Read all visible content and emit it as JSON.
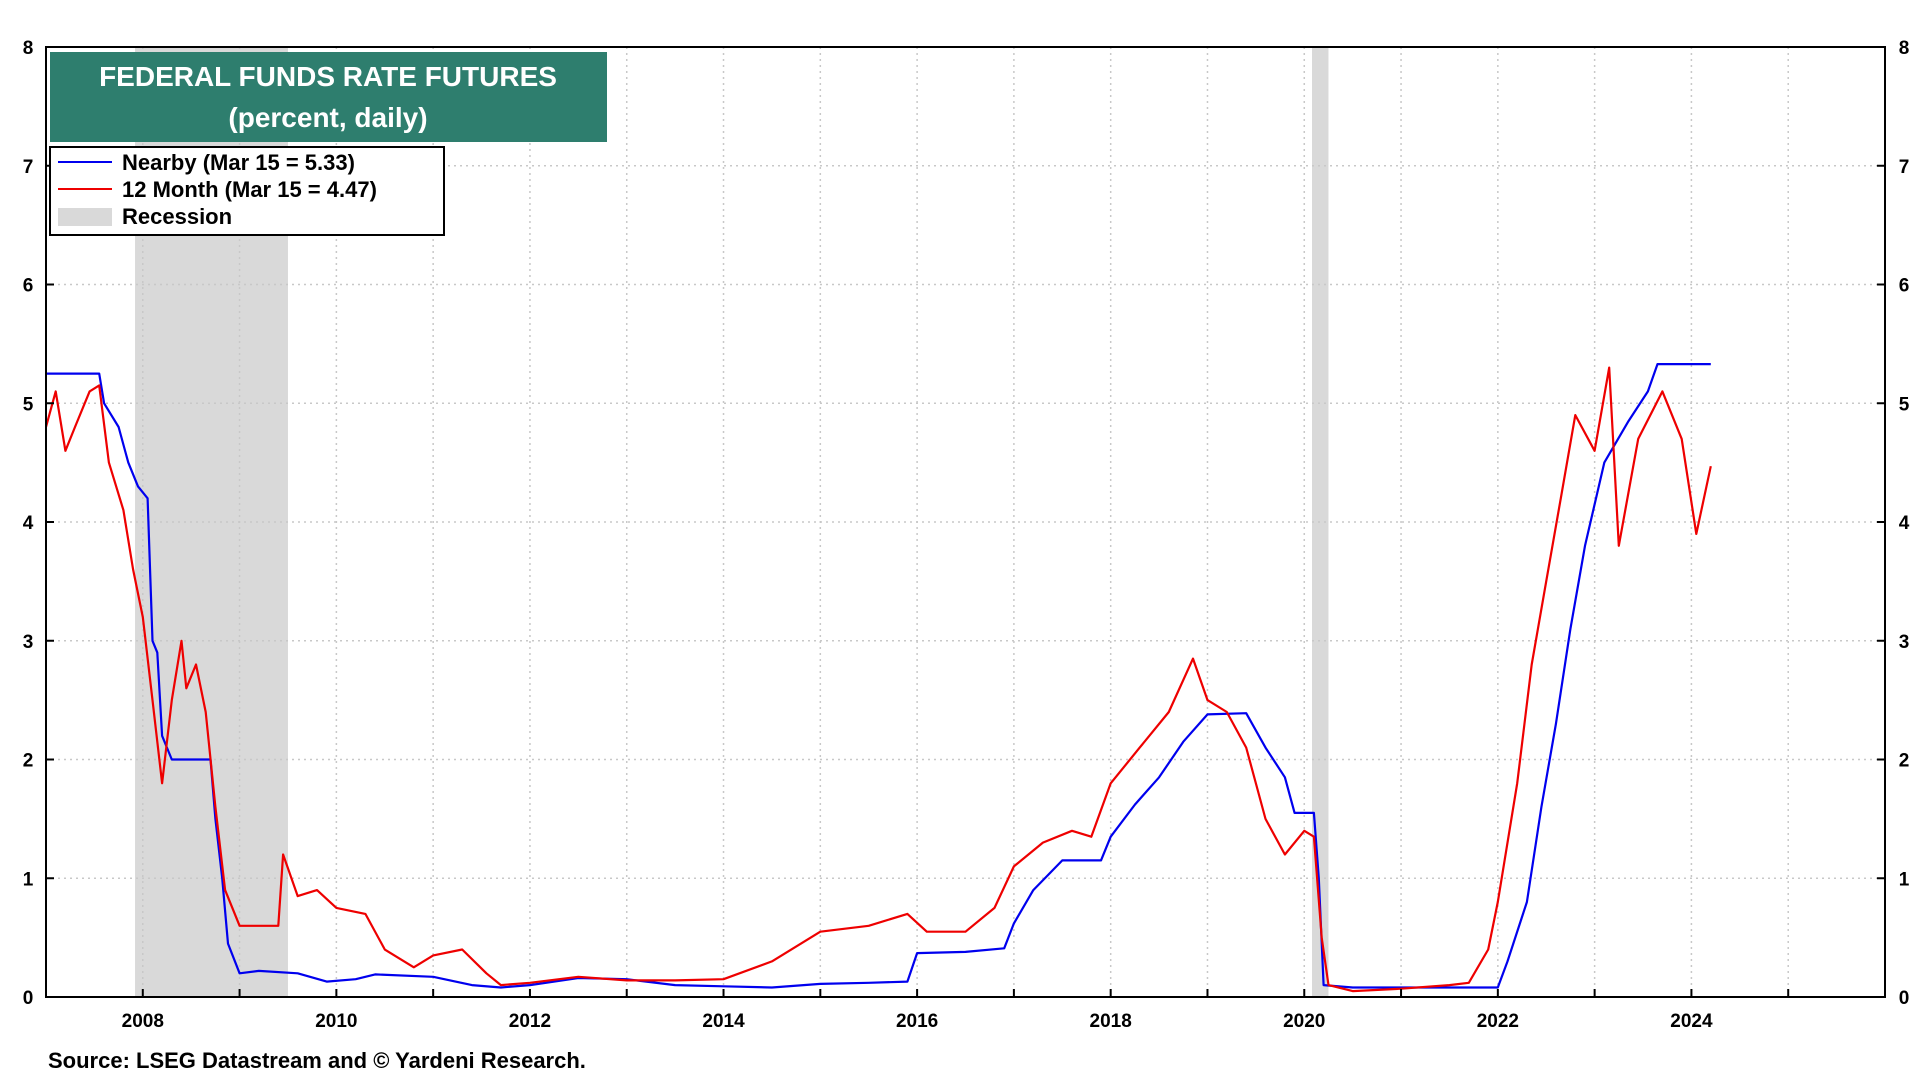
{
  "chart_data": {
    "type": "line",
    "title": "FEDERAL FUNDS RATE FUTURES",
    "subtitle": "(percent, daily)",
    "source": "Source: LSEG Datastream and © Yardeni Research.",
    "xlim": [
      2007.0,
      2026.0
    ],
    "ylim": [
      0,
      8
    ],
    "x_ticks": [
      2008,
      2010,
      2012,
      2014,
      2016,
      2018,
      2020,
      2022,
      2024
    ],
    "y_ticks": [
      0,
      1,
      2,
      3,
      4,
      5,
      6,
      7,
      8
    ],
    "grid": true,
    "legend_position": "top-left",
    "recessions": [
      {
        "start": 2007.92,
        "end": 2009.5
      },
      {
        "start": 2020.08,
        "end": 2020.25
      }
    ],
    "recession_label": "Recession",
    "series": [
      {
        "name": "Nearby (Mar 15 = 5.33)",
        "color": "#0000ee",
        "points": [
          [
            2007.0,
            5.25
          ],
          [
            2007.55,
            5.25
          ],
          [
            2007.6,
            5.0
          ],
          [
            2007.75,
            4.8
          ],
          [
            2007.85,
            4.5
          ],
          [
            2007.95,
            4.3
          ],
          [
            2008.05,
            4.2
          ],
          [
            2008.1,
            3.0
          ],
          [
            2008.15,
            2.9
          ],
          [
            2008.2,
            2.2
          ],
          [
            2008.3,
            2.0
          ],
          [
            2008.7,
            2.0
          ],
          [
            2008.75,
            1.5
          ],
          [
            2008.82,
            1.0
          ],
          [
            2008.88,
            0.45
          ],
          [
            2009.0,
            0.2
          ],
          [
            2009.2,
            0.22
          ],
          [
            2009.6,
            0.2
          ],
          [
            2009.9,
            0.13
          ],
          [
            2010.2,
            0.15
          ],
          [
            2010.4,
            0.19
          ],
          [
            2011.0,
            0.17
          ],
          [
            2011.4,
            0.1
          ],
          [
            2011.7,
            0.08
          ],
          [
            2012.0,
            0.1
          ],
          [
            2012.5,
            0.16
          ],
          [
            2013.0,
            0.15
          ],
          [
            2013.5,
            0.1
          ],
          [
            2014.0,
            0.09
          ],
          [
            2014.5,
            0.08
          ],
          [
            2015.0,
            0.11
          ],
          [
            2015.5,
            0.12
          ],
          [
            2015.9,
            0.13
          ],
          [
            2016.0,
            0.37
          ],
          [
            2016.5,
            0.38
          ],
          [
            2016.9,
            0.41
          ],
          [
            2017.0,
            0.62
          ],
          [
            2017.2,
            0.9
          ],
          [
            2017.5,
            1.15
          ],
          [
            2017.9,
            1.15
          ],
          [
            2018.0,
            1.35
          ],
          [
            2018.25,
            1.62
          ],
          [
            2018.5,
            1.85
          ],
          [
            2018.75,
            2.15
          ],
          [
            2019.0,
            2.38
          ],
          [
            2019.4,
            2.39
          ],
          [
            2019.6,
            2.1
          ],
          [
            2019.8,
            1.85
          ],
          [
            2019.9,
            1.55
          ],
          [
            2020.1,
            1.55
          ],
          [
            2020.15,
            1.0
          ],
          [
            2020.2,
            0.1
          ],
          [
            2020.5,
            0.08
          ],
          [
            2021.0,
            0.08
          ],
          [
            2021.5,
            0.08
          ],
          [
            2022.0,
            0.08
          ],
          [
            2022.1,
            0.3
          ],
          [
            2022.3,
            0.8
          ],
          [
            2022.45,
            1.6
          ],
          [
            2022.6,
            2.3
          ],
          [
            2022.75,
            3.1
          ],
          [
            2022.9,
            3.8
          ],
          [
            2023.1,
            4.5
          ],
          [
            2023.35,
            4.85
          ],
          [
            2023.55,
            5.1
          ],
          [
            2023.65,
            5.33
          ],
          [
            2024.2,
            5.33
          ]
        ]
      },
      {
        "name": "12 Month (Mar 15 = 4.47)",
        "color": "#ee0000",
        "points": [
          [
            2007.0,
            4.8
          ],
          [
            2007.1,
            5.1
          ],
          [
            2007.2,
            4.6
          ],
          [
            2007.3,
            4.8
          ],
          [
            2007.45,
            5.1
          ],
          [
            2007.55,
            5.15
          ],
          [
            2007.65,
            4.5
          ],
          [
            2007.8,
            4.1
          ],
          [
            2007.9,
            3.6
          ],
          [
            2008.0,
            3.2
          ],
          [
            2008.1,
            2.5
          ],
          [
            2008.2,
            1.8
          ],
          [
            2008.3,
            2.5
          ],
          [
            2008.4,
            3.0
          ],
          [
            2008.45,
            2.6
          ],
          [
            2008.55,
            2.8
          ],
          [
            2008.65,
            2.4
          ],
          [
            2008.75,
            1.6
          ],
          [
            2008.85,
            0.9
          ],
          [
            2009.0,
            0.6
          ],
          [
            2009.2,
            0.6
          ],
          [
            2009.4,
            0.6
          ],
          [
            2009.45,
            1.2
          ],
          [
            2009.6,
            0.85
          ],
          [
            2009.8,
            0.9
          ],
          [
            2010.0,
            0.75
          ],
          [
            2010.3,
            0.7
          ],
          [
            2010.5,
            0.4
          ],
          [
            2010.8,
            0.25
          ],
          [
            2011.0,
            0.35
          ],
          [
            2011.3,
            0.4
          ],
          [
            2011.55,
            0.2
          ],
          [
            2011.7,
            0.1
          ],
          [
            2012.0,
            0.12
          ],
          [
            2012.5,
            0.17
          ],
          [
            2013.0,
            0.14
          ],
          [
            2013.5,
            0.14
          ],
          [
            2014.0,
            0.15
          ],
          [
            2014.5,
            0.3
          ],
          [
            2015.0,
            0.55
          ],
          [
            2015.5,
            0.6
          ],
          [
            2015.9,
            0.7
          ],
          [
            2016.1,
            0.55
          ],
          [
            2016.5,
            0.55
          ],
          [
            2016.8,
            0.75
          ],
          [
            2017.0,
            1.1
          ],
          [
            2017.3,
            1.3
          ],
          [
            2017.6,
            1.4
          ],
          [
            2017.8,
            1.35
          ],
          [
            2018.0,
            1.8
          ],
          [
            2018.3,
            2.1
          ],
          [
            2018.6,
            2.4
          ],
          [
            2018.85,
            2.85
          ],
          [
            2019.0,
            2.5
          ],
          [
            2019.2,
            2.4
          ],
          [
            2019.4,
            2.1
          ],
          [
            2019.6,
            1.5
          ],
          [
            2019.8,
            1.2
          ],
          [
            2020.0,
            1.4
          ],
          [
            2020.1,
            1.35
          ],
          [
            2020.18,
            0.5
          ],
          [
            2020.25,
            0.1
          ],
          [
            2020.5,
            0.05
          ],
          [
            2021.0,
            0.07
          ],
          [
            2021.5,
            0.1
          ],
          [
            2021.7,
            0.12
          ],
          [
            2021.9,
            0.4
          ],
          [
            2022.0,
            0.8
          ],
          [
            2022.2,
            1.8
          ],
          [
            2022.35,
            2.8
          ],
          [
            2022.5,
            3.5
          ],
          [
            2022.65,
            4.2
          ],
          [
            2022.8,
            4.9
          ],
          [
            2023.0,
            4.6
          ],
          [
            2023.15,
            5.3
          ],
          [
            2023.25,
            3.8
          ],
          [
            2023.45,
            4.7
          ],
          [
            2023.7,
            5.1
          ],
          [
            2023.9,
            4.7
          ],
          [
            2024.05,
            3.9
          ],
          [
            2024.2,
            4.47
          ]
        ]
      }
    ]
  }
}
